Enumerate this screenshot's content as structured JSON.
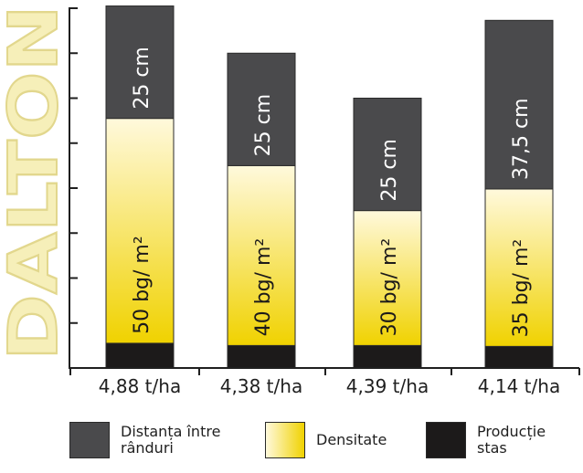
{
  "watermark": "DALTON",
  "colors": {
    "distance": "#4a4a4c",
    "density_top": "#fff9dc",
    "density_bottom": "#f0d200",
    "production": "#1c1a1a",
    "axis": "#1f1f1f",
    "watermark_fill": "#f6efb9",
    "watermark_stroke": "#e2d78d"
  },
  "chart_data": {
    "type": "bar",
    "stacked": true,
    "categories": [
      "4,88 t/ha",
      "4,38 t/ha",
      "4,39 t/ha",
      "4,14 t/ha"
    ],
    "ylim": [
      0,
      8
    ],
    "yticks": [
      0,
      1,
      2,
      3,
      4,
      5,
      6,
      7,
      8
    ],
    "series": [
      {
        "name": "Producție stas",
        "key": "production",
        "values": [
          0.55,
          0.5,
          0.5,
          0.48
        ],
        "labels": [
          "",
          "",
          "",
          ""
        ]
      },
      {
        "name": "Densitate",
        "key": "density",
        "values": [
          5.0,
          4.0,
          3.0,
          3.5
        ],
        "labels": [
          "50 bg/ m²",
          "40 bg/ m²",
          "30 bg/ m²",
          "35 bg/ m²"
        ]
      },
      {
        "name": "Distanța între rânduri",
        "key": "distance",
        "values": [
          2.5,
          2.5,
          2.5,
          3.75
        ],
        "labels": [
          "25 cm",
          "25 cm",
          "25 cm",
          "37,5 cm"
        ]
      }
    ]
  },
  "legend": {
    "distance": "Distanța între\nrânduri",
    "density": "Densitate",
    "production": "Producție\nstas"
  }
}
